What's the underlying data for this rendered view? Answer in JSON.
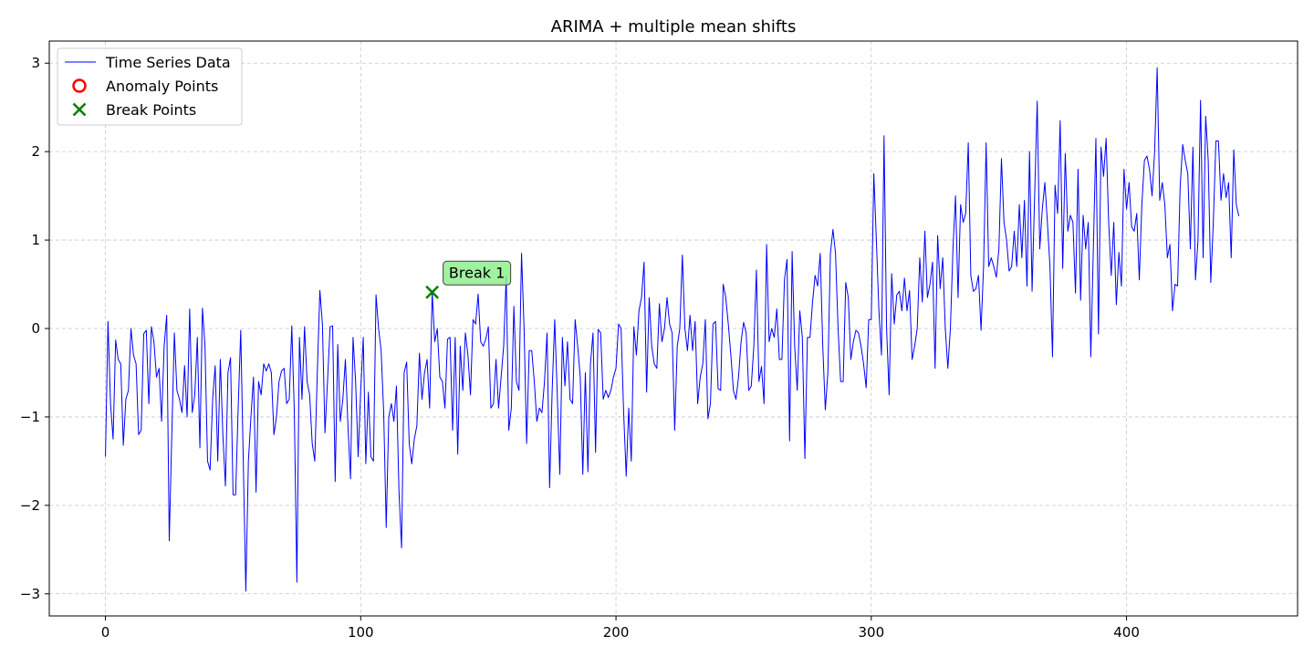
{
  "chart_data": {
    "type": "line",
    "title": "ARIMA + multiple mean shifts",
    "xlabel": "",
    "ylabel": "",
    "xlim": [
      -22,
      467
    ],
    "ylim": [
      -3.25,
      3.25
    ],
    "x_ticks": [
      0,
      100,
      200,
      300,
      400
    ],
    "y_ticks": [
      3,
      2,
      1,
      0,
      -1,
      -2,
      -3
    ],
    "x_tick_labels": [
      "0",
      "100",
      "200",
      "300",
      "400"
    ],
    "y_tick_labels": [
      "3",
      "2",
      "1",
      "0",
      "−1",
      "−2",
      "−3"
    ],
    "grid": true,
    "legend_position": "top-left",
    "legend": [
      {
        "label": "Time Series Data",
        "marker": "line",
        "color": "#0000ff"
      },
      {
        "label": "Anomaly Points",
        "marker": "circle",
        "color": "#ff0000"
      },
      {
        "label": "Break Points",
        "marker": "x",
        "color": "#008000"
      }
    ],
    "series": [
      {
        "name": "Time Series Data",
        "color": "#0000ff",
        "x_start": 0,
        "x_step": 1,
        "values": [
          -1.45,
          0.08,
          -0.85,
          -1.25,
          -0.13,
          -0.35,
          -0.4,
          -1.32,
          -0.8,
          -0.7,
          0.0,
          -0.3,
          -0.4,
          -1.2,
          -1.15,
          -0.06,
          -0.02,
          -0.85,
          0.02,
          -0.15,
          -0.55,
          -0.45,
          -1.05,
          -0.2,
          0.15,
          -2.4,
          -1.2,
          -0.05,
          -0.7,
          -0.8,
          -0.95,
          -0.42,
          -1.0,
          0.22,
          -0.95,
          -0.75,
          -0.1,
          -1.35,
          0.23,
          -0.2,
          -1.5,
          -1.6,
          -0.8,
          -0.42,
          -1.5,
          -0.35,
          -1.2,
          -1.78,
          -0.5,
          -0.33,
          -1.88,
          -1.88,
          -0.9,
          -0.02,
          -1.5,
          -2.97,
          -1.5,
          -1.0,
          -0.55,
          -1.85,
          -0.6,
          -0.75,
          -0.4,
          -0.48,
          -0.4,
          -0.5,
          -1.2,
          -1.0,
          -0.6,
          -0.48,
          -0.45,
          -0.85,
          -0.8,
          0.03,
          -0.95,
          -2.87,
          -0.1,
          -0.8,
          0.02,
          -0.6,
          -0.75,
          -1.3,
          -1.5,
          -0.5,
          0.43,
          0.05,
          -1.18,
          -0.6,
          0.02,
          0.03,
          -1.73,
          -0.18,
          -1.05,
          -0.8,
          -0.35,
          -1.1,
          -1.7,
          -0.1,
          -0.6,
          -1.45,
          -0.7,
          -0.1,
          -1.53,
          -0.72,
          -1.45,
          -1.5,
          0.38,
          0.0,
          -0.25,
          -0.95,
          -2.25,
          -1.0,
          -0.85,
          -1.05,
          -0.65,
          -1.85,
          -2.48,
          -0.5,
          -0.38,
          -1.3,
          -1.53,
          -1.25,
          -1.1,
          -0.28,
          -0.8,
          -0.5,
          -0.35,
          -0.9,
          0.41,
          -0.15,
          0.0,
          -0.55,
          -0.6,
          -0.9,
          -0.12,
          -0.1,
          -1.15,
          -0.1,
          -1.42,
          -0.2,
          -0.7,
          -0.05,
          -0.3,
          -0.75,
          0.1,
          0.05,
          0.39,
          -0.15,
          -0.2,
          -0.12,
          0.02,
          -0.9,
          -0.85,
          -0.35,
          -0.9,
          -0.55,
          -0.2,
          0.6,
          -1.15,
          -0.9,
          0.25,
          -0.6,
          -0.7,
          0.85,
          0.0,
          -1.3,
          -0.25,
          -0.25,
          -0.6,
          -1.05,
          -0.9,
          -0.95,
          -0.6,
          -0.05,
          -1.8,
          -0.7,
          0.1,
          -0.75,
          -1.65,
          -0.1,
          -0.65,
          -0.15,
          -0.8,
          -0.85,
          0.1,
          -0.2,
          -0.55,
          -1.65,
          -0.5,
          -1.62,
          -0.4,
          -0.05,
          -1.4,
          -0.01,
          -0.05,
          -0.8,
          -0.7,
          -0.78,
          -0.7,
          -0.55,
          -0.45,
          0.05,
          0.0,
          -0.95,
          -1.67,
          -0.9,
          -1.5,
          0.02,
          -0.3,
          0.2,
          0.35,
          0.75,
          -0.72,
          0.35,
          -0.2,
          -0.4,
          -0.45,
          0.28,
          -0.15,
          0.0,
          0.35,
          0.05,
          -0.05,
          -1.15,
          -0.2,
          0.0,
          0.83,
          0.0,
          -0.25,
          0.15,
          -0.25,
          0.08,
          -0.85,
          -0.55,
          -0.4,
          0.1,
          -1.02,
          -0.85,
          0.05,
          0.08,
          -0.68,
          -0.7,
          0.5,
          0.35,
          0.05,
          -0.3,
          -0.7,
          -0.8,
          -0.55,
          -0.15,
          0.07,
          -0.05,
          -0.7,
          -0.65,
          -0.2,
          0.66,
          -0.6,
          -0.43,
          -0.85,
          0.95,
          -0.15,
          0.0,
          -0.1,
          0.22,
          -0.35,
          -0.35,
          0.55,
          0.78,
          -1.27,
          0.87,
          -0.2,
          -0.7,
          0.2,
          -0.1,
          -1.47,
          -0.1,
          -0.1,
          0.3,
          0.6,
          0.48,
          0.85,
          -0.2,
          -0.92,
          -0.5,
          0.85,
          1.12,
          0.85,
          0.0,
          -0.6,
          -0.6,
          0.52,
          0.35,
          -0.35,
          -0.15,
          -0.02,
          -0.05,
          -0.2,
          -0.4,
          -0.67,
          0.1,
          0.1,
          1.75,
          1.0,
          0.2,
          -0.3,
          2.18,
          0.0,
          -0.75,
          0.62,
          0.05,
          0.38,
          0.42,
          0.2,
          0.57,
          0.2,
          0.43,
          -0.35,
          -0.2,
          0.0,
          0.8,
          0.3,
          1.1,
          0.35,
          0.5,
          0.75,
          -0.45,
          1.05,
          0.45,
          0.8,
          0.0,
          -0.45,
          0.0,
          0.9,
          1.5,
          0.35,
          1.4,
          1.2,
          1.3,
          2.1,
          0.6,
          0.42,
          0.45,
          0.6,
          -0.02,
          0.7,
          2.1,
          0.7,
          0.8,
          0.7,
          0.58,
          0.9,
          1.92,
          1.2,
          1.0,
          0.65,
          0.7,
          1.1,
          0.7,
          1.4,
          0.8,
          1.45,
          0.48,
          2.0,
          0.42,
          1.5,
          2.57,
          0.9,
          1.35,
          1.65,
          1.2,
          0.7,
          -0.32,
          1.62,
          1.3,
          2.35,
          0.68,
          1.98,
          1.1,
          1.28,
          1.2,
          0.4,
          1.8,
          0.32,
          1.28,
          0.9,
          1.2,
          -0.32,
          0.9,
          2.15,
          -0.06,
          2.05,
          1.72,
          2.15,
          1.2,
          0.6,
          1.2,
          0.27,
          0.86,
          0.48,
          1.8,
          1.35,
          1.65,
          1.15,
          1.1,
          1.3,
          0.55,
          1.4,
          1.9,
          1.95,
          1.8,
          1.5,
          2.0,
          2.95,
          1.45,
          1.65,
          1.4,
          0.8,
          0.95,
          0.2,
          0.5,
          0.48,
          1.6,
          2.08,
          1.9,
          1.75,
          0.9,
          2.05,
          0.55,
          1.0,
          2.58,
          0.8,
          2.4,
          1.9,
          0.52,
          1.2,
          2.12,
          2.12,
          1.45,
          1.75,
          1.48,
          1.65,
          0.8,
          2.02,
          1.4,
          1.27
        ]
      }
    ],
    "anomaly_points": [],
    "break_points": [
      {
        "x": 128,
        "y": 0.41,
        "label": "Break 1"
      }
    ]
  }
}
